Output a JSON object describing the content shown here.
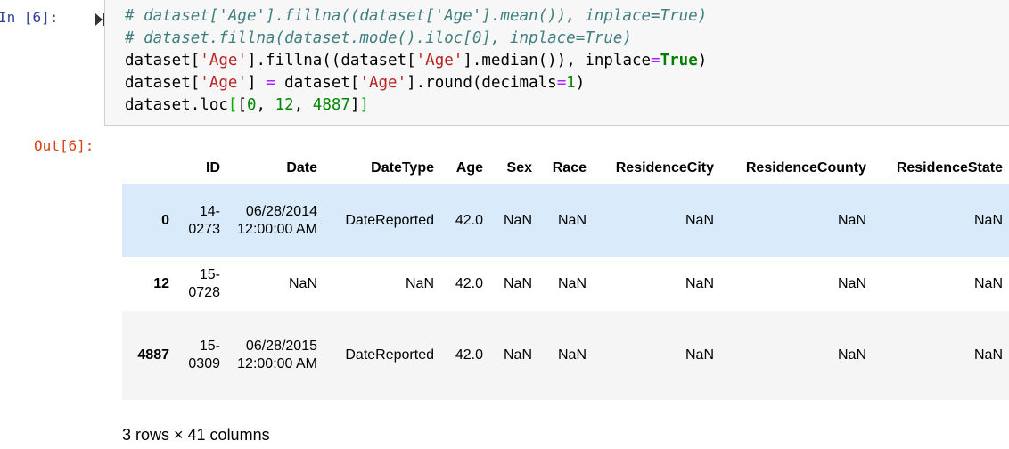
{
  "cell": {
    "in_prompt": "In [6]:",
    "out_prompt": "Out[6]:",
    "code_lines": [
      [
        {
          "t": "# dataset['Age'].fillna((dataset['Age'].mean()), inplace=True)",
          "c": "c"
        }
      ],
      [
        {
          "t": "# dataset.fillna(dataset.mode().iloc[0], inplace=True)",
          "c": "c"
        }
      ],
      [
        {
          "t": "dataset[",
          "c": ""
        },
        {
          "t": "'Age'",
          "c": "s"
        },
        {
          "t": "].fillna((dataset[",
          "c": ""
        },
        {
          "t": "'Age'",
          "c": "s"
        },
        {
          "t": "].median()), inplace",
          "c": ""
        },
        {
          "t": "=",
          "c": "o"
        },
        {
          "t": "True",
          "c": "k"
        },
        {
          "t": ")",
          "c": ""
        }
      ],
      [
        {
          "t": "dataset[",
          "c": ""
        },
        {
          "t": "'Age'",
          "c": "s"
        },
        {
          "t": "] ",
          "c": ""
        },
        {
          "t": "=",
          "c": "o"
        },
        {
          "t": " dataset[",
          "c": ""
        },
        {
          "t": "'Age'",
          "c": "s"
        },
        {
          "t": "].round(decimals",
          "c": ""
        },
        {
          "t": "=",
          "c": "o"
        },
        {
          "t": "1",
          "c": "n"
        },
        {
          "t": ")",
          "c": ""
        }
      ],
      [
        {
          "t": "dataset.loc",
          "c": ""
        },
        {
          "t": "[",
          "c": "b"
        },
        {
          "t": "[",
          "c": ""
        },
        {
          "t": "0",
          "c": "n"
        },
        {
          "t": ", ",
          "c": ""
        },
        {
          "t": "12",
          "c": "n"
        },
        {
          "t": ", ",
          "c": ""
        },
        {
          "t": "4887",
          "c": "n"
        },
        {
          "t": "]",
          "c": ""
        },
        {
          "t": "]",
          "c": "b"
        }
      ]
    ]
  },
  "table": {
    "columns": [
      "",
      "ID",
      "Date",
      "DateType",
      "Age",
      "Sex",
      "Race",
      "ResidenceCity",
      "ResidenceCounty",
      "ResidenceState"
    ],
    "rows": [
      {
        "index": "0",
        "cells": [
          "14-0273",
          "06/28/2014 12:00:00 AM",
          "DateReported",
          "42.0",
          "NaN",
          "NaN",
          "NaN",
          "NaN",
          "NaN"
        ]
      },
      {
        "index": "12",
        "cells": [
          "15-0728",
          "NaN",
          "NaN",
          "42.0",
          "NaN",
          "NaN",
          "NaN",
          "NaN",
          "NaN"
        ]
      },
      {
        "index": "4887",
        "cells": [
          "15-0309",
          "06/28/2015 12:00:00 AM",
          "DateReported",
          "42.0",
          "NaN",
          "NaN",
          "NaN",
          "NaN",
          "NaN"
        ]
      }
    ],
    "highlight_color": "#d9ebfa",
    "footer": "3 rows × 41 columns"
  }
}
